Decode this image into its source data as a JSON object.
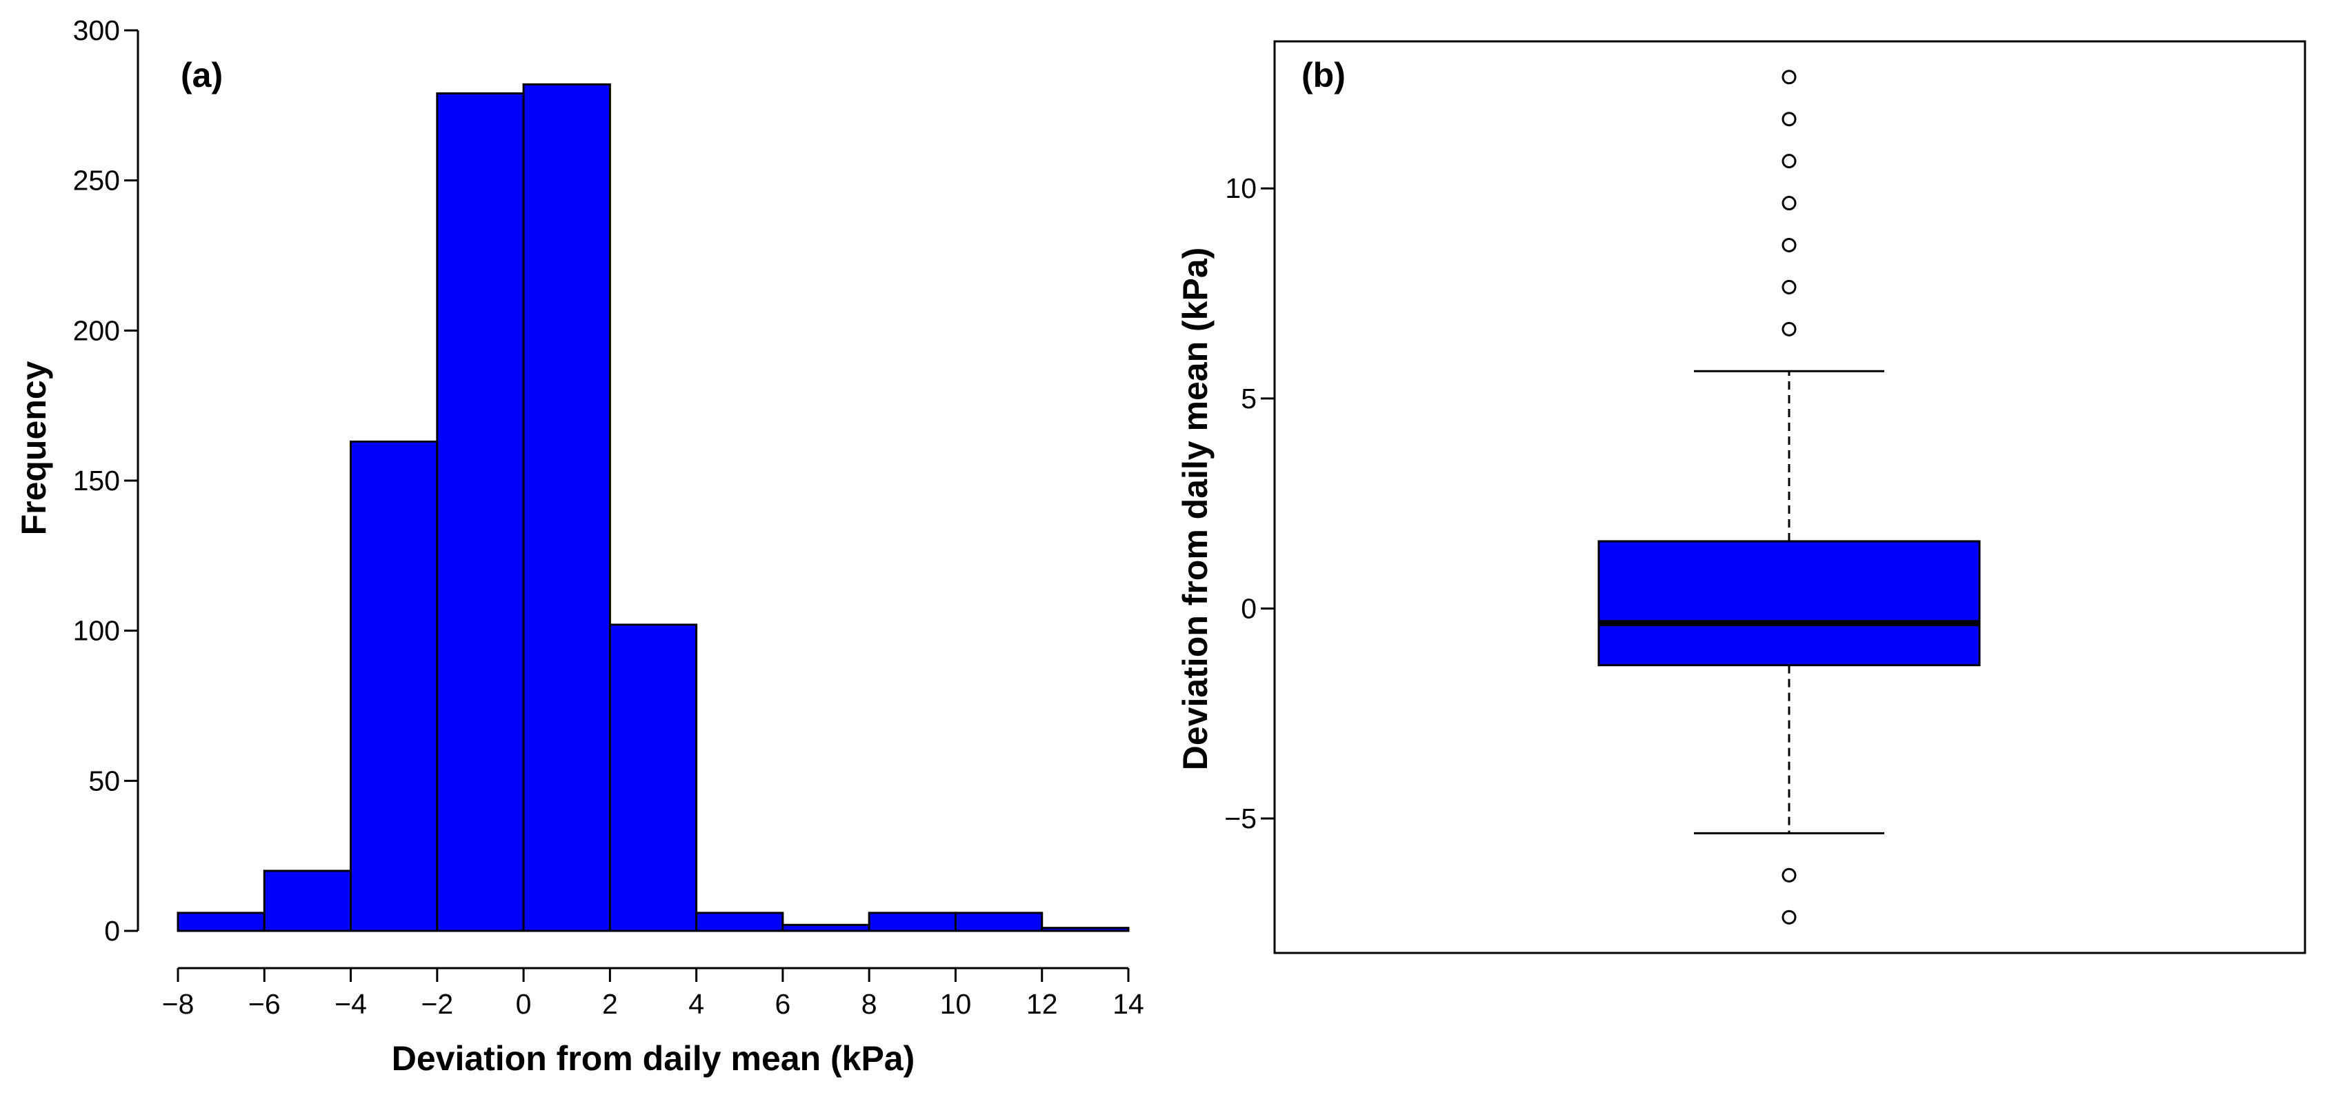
{
  "chart_data": [
    {
      "type": "histogram",
      "panel_label": "(a)",
      "xlabel": "Deviation from daily mean (kPa)",
      "ylabel": "Frequency",
      "xlim": [
        -8,
        14
      ],
      "ylim": [
        0,
        300
      ],
      "bin_edges": [
        -8,
        -6,
        -4,
        -2,
        0,
        2,
        4,
        6,
        8,
        10,
        12,
        14
      ],
      "values": [
        6,
        20,
        163,
        279,
        282,
        102,
        6,
        2,
        6,
        6,
        1
      ],
      "xticks": [
        -8,
        -6,
        -4,
        -2,
        0,
        2,
        4,
        6,
        8,
        10,
        12,
        14
      ],
      "xtick_labels": [
        "−8",
        "−6",
        "−4",
        "−2",
        "0",
        "2",
        "4",
        "6",
        "8",
        "10",
        "12",
        "14"
      ],
      "yticks": [
        0,
        50,
        100,
        150,
        200,
        250,
        300
      ],
      "ytick_labels": [
        "0",
        "50",
        "100",
        "150",
        "200",
        "250",
        "300"
      ],
      "bar_color": "#0000FF",
      "edge_color": "#000000"
    },
    {
      "type": "box",
      "panel_label": "(b)",
      "xlabel": "",
      "ylabel": "Deviation from daily mean (kPa)",
      "ylim": [
        -8.2,
        13.5
      ],
      "whisker_low": -5.35,
      "q1": -1.35,
      "median": -0.35,
      "q3": 1.6,
      "whisker_high": 5.65,
      "outliers": [
        12.65,
        11.65,
        10.65,
        9.65,
        8.65,
        7.65,
        6.65,
        -6.35,
        -7.35
      ],
      "yticks": [
        -5,
        0,
        5,
        10
      ],
      "ytick_labels": [
        "−5",
        "0",
        "5",
        "10"
      ],
      "box_color": "#0000FF",
      "edge_color": "#000000"
    }
  ]
}
